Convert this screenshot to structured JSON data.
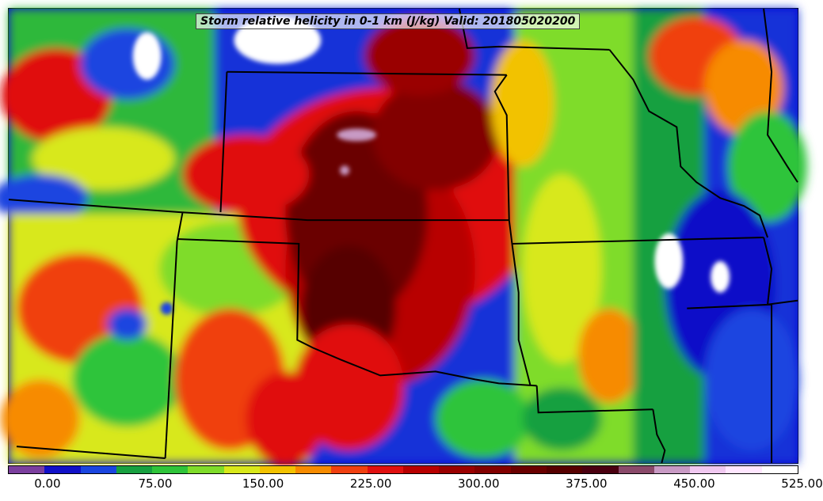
{
  "title": "Storm relative helicity in 0-1 km (J/kg) Valid: 201805020200",
  "colorbar": {
    "colors": [
      "#7b3f9e",
      "#1010c8",
      "#1a45e0",
      "#18a040",
      "#2fc43a",
      "#7fdc2a",
      "#d8e81a",
      "#f2c200",
      "#f78b00",
      "#f04010",
      "#e01010",
      "#b80000",
      "#9a0000",
      "#820000",
      "#6a0000",
      "#560000",
      "#4a0010",
      "#8a4a6a",
      "#c89ac4",
      "#f0c8f0",
      "#ffe6ff",
      "#ffffff"
    ],
    "tick_labels": [
      "0.00",
      "75.00",
      "150.00",
      "225.00",
      "300.00",
      "375.00",
      "450.00",
      "525.00"
    ]
  },
  "map_colors": {
    "background": "#1a2fd8",
    "borders": "#000000"
  }
}
